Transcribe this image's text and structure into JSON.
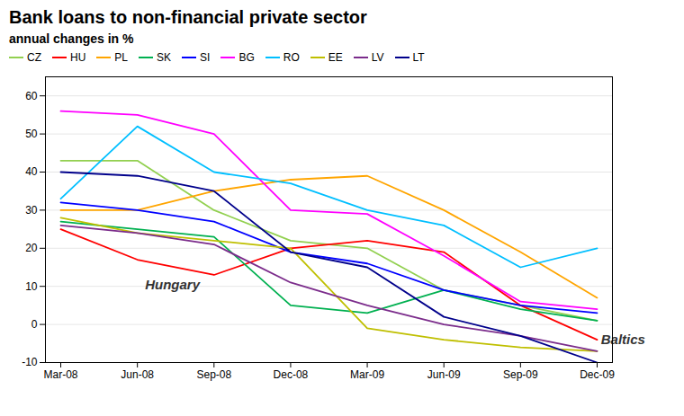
{
  "chart_data": {
    "type": "line",
    "title": "Bank loans to non-financial private sector",
    "subtitle": "annual changes in %",
    "categories": [
      "Mar-08",
      "Jun-08",
      "Sep-08",
      "Dec-08",
      "Mar-09",
      "Jun-09",
      "Sep-09",
      "Dec-09"
    ],
    "series": [
      {
        "name": "CZ",
        "color": "#92D050",
        "values": [
          43,
          43,
          30,
          22,
          20,
          9,
          5,
          1
        ]
      },
      {
        "name": "HU",
        "color": "#FF0000",
        "values": [
          25,
          17,
          13,
          20,
          22,
          19,
          5,
          -4
        ]
      },
      {
        "name": "PL",
        "color": "#FFA500",
        "values": [
          30,
          30,
          35,
          38,
          39,
          30,
          19,
          7
        ]
      },
      {
        "name": "SK",
        "color": "#00B050",
        "values": [
          27,
          25,
          23,
          5,
          3,
          9,
          4,
          1
        ]
      },
      {
        "name": "SI",
        "color": "#0000FF",
        "values": [
          32,
          30,
          27,
          19,
          16,
          9,
          5,
          3
        ]
      },
      {
        "name": "BG",
        "color": "#FF00FF",
        "values": [
          56,
          55,
          50,
          30,
          29,
          18,
          6,
          4
        ]
      },
      {
        "name": "RO",
        "color": "#00BFFF",
        "values": [
          33,
          52,
          40,
          37,
          30,
          26,
          15,
          20
        ]
      },
      {
        "name": "EE",
        "color": "#BFBF00",
        "values": [
          28,
          24,
          22,
          20,
          -1,
          -4,
          -6,
          -7
        ]
      },
      {
        "name": "LV",
        "color": "#7B2C8B",
        "values": [
          26,
          24,
          21,
          11,
          5,
          0,
          -3,
          -7
        ]
      },
      {
        "name": "LT",
        "color": "#00008B",
        "values": [
          40,
          39,
          35,
          19,
          15,
          2,
          -3,
          -10
        ]
      }
    ],
    "annotations": [
      {
        "text": "Hungary",
        "x": 1.1,
        "y": 9
      },
      {
        "text": "Baltics",
        "x": 7.05,
        "y": -5.5
      }
    ],
    "ylim": [
      -10,
      65
    ],
    "yticks": [
      -10,
      0,
      10,
      20,
      30,
      40,
      50,
      60
    ],
    "grid": true,
    "legend": "top"
  }
}
